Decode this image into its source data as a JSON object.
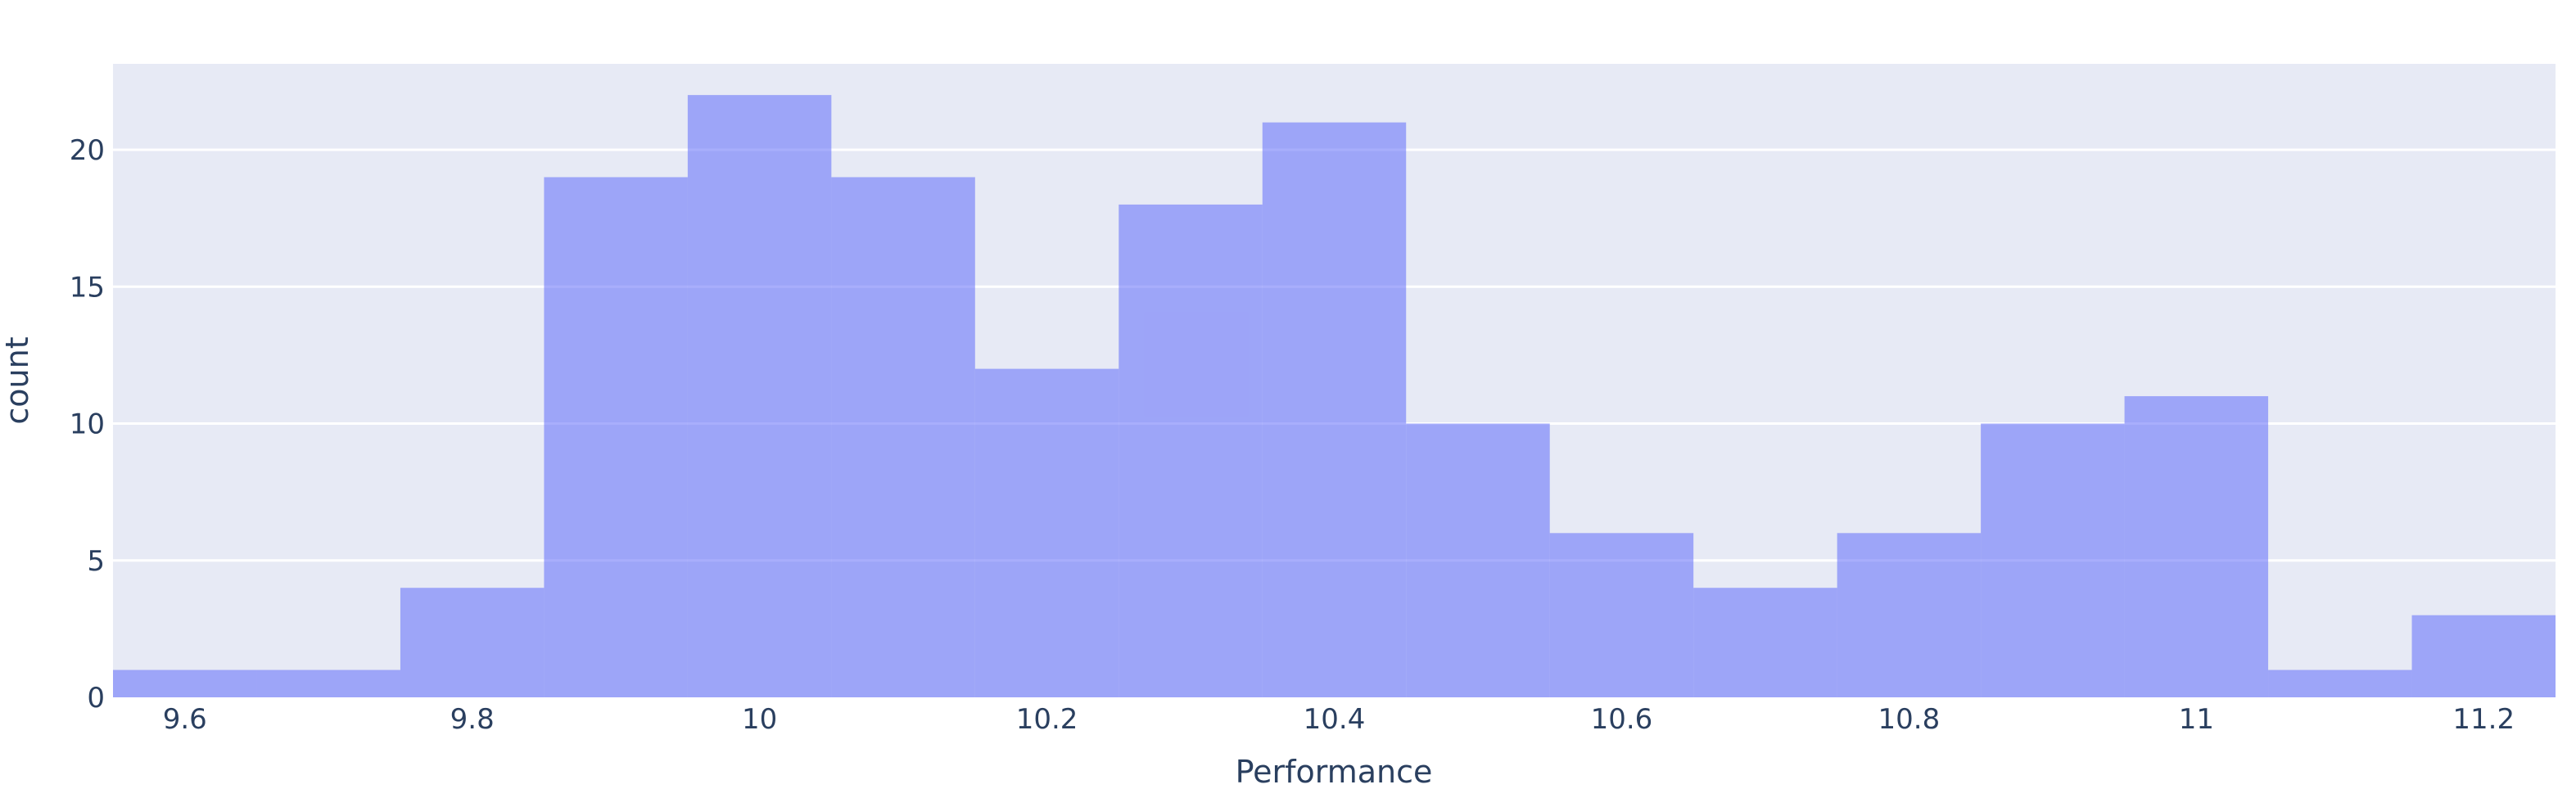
{
  "chart_data": {
    "type": "bar",
    "subtype": "histogram",
    "title": "",
    "xlabel": "Performance",
    "ylabel": "count",
    "bin_start": 9.55,
    "bin_width": 0.1,
    "counts": [
      1,
      1,
      4,
      19,
      22,
      19,
      12,
      18,
      21,
      10,
      6,
      4,
      6,
      10,
      11,
      1,
      3
    ],
    "bin_edges": [
      9.55,
      9.65,
      9.75,
      9.85,
      9.95,
      10.05,
      10.15,
      10.25,
      10.35,
      10.45,
      10.55,
      10.65,
      10.75,
      10.85,
      10.95,
      11.05,
      11.15,
      11.25
    ],
    "x_range": [
      9.55,
      11.25
    ],
    "y_range": [
      0,
      23.14
    ],
    "x_ticks": [
      {
        "value": 9.6,
        "label": "9.6"
      },
      {
        "value": 9.8,
        "label": "9.8"
      },
      {
        "value": 10,
        "label": "10"
      },
      {
        "value": 10.2,
        "label": "10.2"
      },
      {
        "value": 10.4,
        "label": "10.4"
      },
      {
        "value": 10.6,
        "label": "10.6"
      },
      {
        "value": 10.8,
        "label": "10.8"
      },
      {
        "value": 11,
        "label": "11"
      },
      {
        "value": 11.2,
        "label": "11.2"
      }
    ],
    "y_ticks": [
      {
        "value": 0,
        "label": "0"
      },
      {
        "value": 5,
        "label": "5"
      },
      {
        "value": 10,
        "label": "10"
      },
      {
        "value": 15,
        "label": "15"
      },
      {
        "value": 20,
        "label": "20"
      }
    ],
    "grid": true,
    "legend": "none",
    "colors": {
      "bar_fill": "rgba(99,110,250,0.56)",
      "bar_flat": "#9da4f5",
      "plot_bg": "#e7eaf5",
      "gridline": "#ffffff",
      "text": "#2a3f5f",
      "paper_bg": "#ffffff"
    }
  }
}
